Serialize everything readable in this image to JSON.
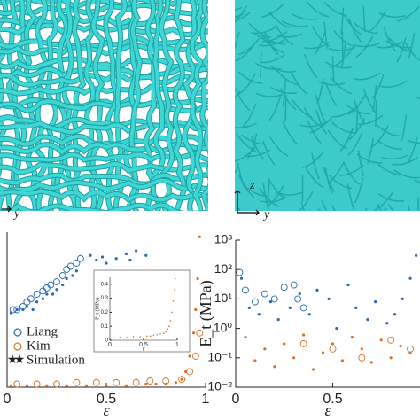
{
  "panels": [
    {
      "axis_labels": [
        "y"
      ]
    },
    {
      "axis_labels": [
        "z",
        "y"
      ]
    }
  ],
  "chart_data": [
    {
      "type": "scatter",
      "xlabel": "ε",
      "xlim": [
        0,
        1
      ],
      "xticks": [
        0,
        0.5,
        1
      ],
      "ylim": [
        0,
        1
      ],
      "legend": "lower-left",
      "series": [
        {
          "name": "Liang",
          "color": "#2a6bb0",
          "marker": "circle",
          "x": [
            0.03,
            0.05,
            0.08,
            0.1,
            0.12,
            0.15,
            0.18,
            0.2,
            0.22,
            0.25,
            0.28,
            0.3,
            0.32,
            0.35,
            0.37
          ],
          "values": [
            0.5,
            0.5,
            0.52,
            0.55,
            0.57,
            0.6,
            0.62,
            0.64,
            0.66,
            0.68,
            0.72,
            0.76,
            0.78,
            0.8,
            0.83
          ]
        },
        {
          "name": "Kim",
          "color": "#d8712a",
          "marker": "circle",
          "x": [
            0.05,
            0.15,
            0.25,
            0.35,
            0.45,
            0.55,
            0.65,
            0.72,
            0.8,
            0.88,
            0.92,
            0.95,
            0.97
          ],
          "values": [
            0.02,
            0.02,
            0.02,
            0.03,
            0.03,
            0.03,
            0.03,
            0.04,
            0.04,
            0.05,
            0.1,
            0.2,
            0.35
          ]
        },
        {
          "name": "Simulation",
          "color": "#2a6bb0",
          "marker": "dot",
          "x": [
            0.02,
            0.05,
            0.08,
            0.1,
            0.13,
            0.15,
            0.18,
            0.2,
            0.23,
            0.25,
            0.28,
            0.3,
            0.33,
            0.35,
            0.42,
            0.45,
            0.48,
            0.5,
            0.55,
            0.6,
            0.62,
            0.65,
            0.7
          ],
          "values": [
            0.48,
            0.5,
            0.5,
            0.52,
            0.5,
            0.55,
            0.57,
            0.6,
            0.6,
            0.63,
            0.66,
            0.7,
            0.72,
            0.75,
            0.85,
            0.82,
            0.84,
            0.8,
            0.83,
            0.86,
            0.82,
            0.88,
            0.85
          ]
        },
        {
          "color": "#d8712a",
          "marker": "dot",
          "x": [
            0.02,
            0.1,
            0.2,
            0.3,
            0.4,
            0.5,
            0.6,
            0.7,
            0.75,
            0.8,
            0.85,
            0.88,
            0.9,
            0.92,
            0.94,
            0.95,
            0.96,
            0.97
          ],
          "values": [
            0.01,
            0.01,
            0.01,
            0.01,
            0.01,
            0.01,
            0.01,
            0.02,
            0.02,
            0.02,
            0.03,
            0.05,
            0.1,
            0.2,
            0.35,
            0.5,
            0.7,
            0.97
          ]
        }
      ],
      "inset": {
        "type": "scatter",
        "xlabel": "ε",
        "ylabel": "P_t (MPa)",
        "xlim": [
          0,
          1
        ],
        "xticks": [
          0,
          0.5,
          1
        ],
        "ylim": [
          0,
          0.45
        ],
        "yticks": [
          0,
          0.1,
          0.2,
          0.3,
          0.4
        ],
        "series": [
          {
            "color": "#d8712a",
            "marker": "dot",
            "x": [
              0.05,
              0.15,
              0.25,
              0.35,
              0.45,
              0.55,
              0.6,
              0.65,
              0.7,
              0.75,
              0.8,
              0.83,
              0.86,
              0.88,
              0.9,
              0.92,
              0.94,
              0.96,
              0.97
            ],
            "values": [
              0.02,
              0.02,
              0.02,
              0.025,
              0.025,
              0.03,
              0.03,
              0.035,
              0.04,
              0.045,
              0.05,
              0.06,
              0.08,
              0.1,
              0.14,
              0.2,
              0.28,
              0.36,
              0.44
            ]
          }
        ]
      }
    },
    {
      "type": "scatter",
      "xlabel": "ε",
      "ylabel": "E_t (MPa)",
      "xlim": [
        0,
        0.95
      ],
      "xticks": [
        0,
        0.5
      ],
      "ylim": [
        0.01,
        1000
      ],
      "log_y": true,
      "yticks": [
        {
          "value": 0.01,
          "label": "10⁻²"
        },
        {
          "value": 0.1,
          "label": "10⁻¹"
        },
        {
          "value": 1,
          "label": "10⁰"
        },
        {
          "value": 10,
          "label": "10¹"
        },
        {
          "value": 100,
          "label": "10²"
        },
        {
          "value": 1000,
          "label": "10³"
        }
      ],
      "series": [
        {
          "color": "#2a6bb0",
          "marker": "circle",
          "x": [
            0.02,
            0.05,
            0.1,
            0.15,
            0.2,
            0.25,
            0.3,
            0.32,
            0.35
          ],
          "values": [
            80,
            20,
            8,
            15,
            10,
            25,
            30,
            10,
            5
          ]
        },
        {
          "color": "#2a6bb0",
          "marker": "dot",
          "x": [
            0.03,
            0.07,
            0.12,
            0.18,
            0.22,
            0.28,
            0.33,
            0.38,
            0.42,
            0.48,
            0.52,
            0.58,
            0.62,
            0.68,
            0.72,
            0.78,
            0.82,
            0.86,
            0.9,
            0.93
          ],
          "values": [
            50,
            5,
            3,
            8,
            2,
            5,
            15,
            3,
            20,
            10,
            1,
            30,
            5,
            2,
            8,
            1.5,
            3,
            10,
            50,
            300
          ]
        },
        {
          "color": "#d8712a",
          "marker": "circle",
          "x": [
            0.35,
            0.5,
            0.65,
            0.8,
            0.9
          ],
          "values": [
            0.3,
            0.2,
            0.1,
            0.4,
            0.2
          ]
        },
        {
          "color": "#d8712a",
          "marker": "dot",
          "x": [
            0.05,
            0.1,
            0.15,
            0.2,
            0.25,
            0.3,
            0.35,
            0.4,
            0.45,
            0.5,
            0.55,
            0.6,
            0.65,
            0.7,
            0.75,
            0.8,
            0.85,
            0.9
          ],
          "values": [
            0.5,
            0.08,
            0.2,
            0.05,
            0.3,
            0.1,
            0.6,
            0.04,
            0.15,
            0.3,
            0.08,
            0.5,
            0.2,
            0.07,
            0.4,
            0.1,
            0.25,
            0.15
          ]
        }
      ]
    }
  ]
}
